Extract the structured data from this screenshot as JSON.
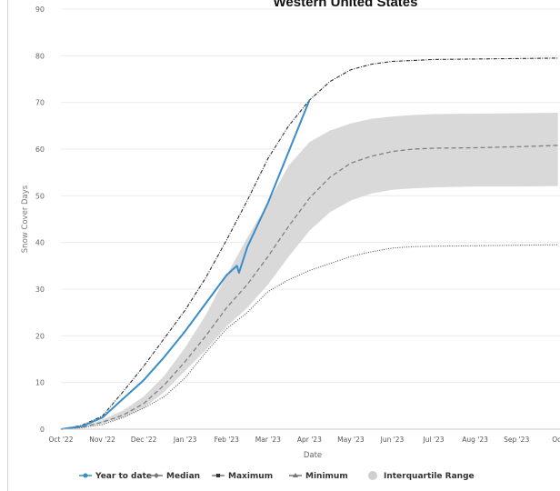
{
  "chart_data": {
    "type": "line",
    "title": "Western United States",
    "xlabel": "Date",
    "ylabel": "Snow Cover Days",
    "ylim": [
      0,
      90
    ],
    "yticks": [
      0,
      10,
      20,
      30,
      40,
      50,
      60,
      70,
      80,
      90
    ],
    "xticks": [
      "Oct '22",
      "Nov '22",
      "Dec '22",
      "Jan '23",
      "Feb '23",
      "Mar '23",
      "Apr '23",
      "May '23",
      "Jun '23",
      "Jul '23",
      "Aug '23",
      "Sep '23",
      "Oct"
    ],
    "x_unit": "months since Oct '22",
    "grid": true,
    "legend_position": "bottom",
    "colors": {
      "year_to_date": "#3a8dc8",
      "median": "#808080",
      "maximum": "#2b2b2b",
      "minimum": "#555555",
      "iqr": "#d9d9d9"
    },
    "series": [
      {
        "name": "Year to date",
        "x": [
          0,
          0.5,
          1.0,
          1.5,
          2.0,
          2.5,
          3.0,
          3.5,
          4.0,
          4.25,
          4.3,
          4.5,
          5.0,
          5.5,
          6.0
        ],
        "values": [
          0,
          0.6,
          2.5,
          6.5,
          10.5,
          15.5,
          21.0,
          27.0,
          33.0,
          35.0,
          33.5,
          39.0,
          48.5,
          59.5,
          70.5
        ]
      },
      {
        "name": "Median",
        "x": [
          0,
          0.5,
          1.0,
          1.5,
          2.0,
          2.5,
          3.0,
          3.5,
          4.0,
          4.5,
          5.0,
          5.5,
          6.0,
          6.5,
          7.0,
          7.5,
          8.0,
          8.5,
          9.0,
          10.0,
          11.0,
          12.0
        ],
        "values": [
          0,
          0.4,
          1.5,
          3.0,
          5.5,
          9.5,
          14.5,
          20.0,
          26.0,
          31.0,
          37.0,
          43.5,
          49.5,
          54.0,
          57.0,
          58.5,
          59.5,
          60.0,
          60.2,
          60.3,
          60.5,
          60.8
        ]
      },
      {
        "name": "Maximum",
        "x": [
          0,
          0.5,
          1.0,
          1.5,
          2.0,
          2.5,
          3.0,
          3.5,
          4.0,
          4.5,
          5.0,
          5.5,
          6.0,
          6.5,
          7.0,
          7.5,
          8.0,
          8.5,
          9.0,
          10.0,
          11.0,
          12.0
        ],
        "values": [
          0,
          0.8,
          2.8,
          8.0,
          13.5,
          19.5,
          25.5,
          32.5,
          40.5,
          49.0,
          58.0,
          65.0,
          70.5,
          74.5,
          77.0,
          78.2,
          78.8,
          79.0,
          79.2,
          79.3,
          79.4,
          79.5
        ]
      },
      {
        "name": "Minimum",
        "x": [
          0,
          0.5,
          1.0,
          1.5,
          2.0,
          2.5,
          3.0,
          3.5,
          4.0,
          4.5,
          5.0,
          5.5,
          6.0,
          6.5,
          7.0,
          7.5,
          8.0,
          8.5,
          9.0,
          10.0,
          11.0,
          12.0
        ],
        "values": [
          0,
          0.3,
          1.0,
          2.5,
          4.5,
          7.0,
          11.0,
          16.5,
          21.5,
          25.0,
          29.5,
          32.0,
          34.0,
          35.5,
          37.0,
          38.0,
          38.8,
          39.1,
          39.2,
          39.3,
          39.4,
          39.5
        ]
      }
    ],
    "band": {
      "name": "Interquartile Range",
      "x": [
        0,
        0.5,
        1.0,
        1.5,
        2.0,
        2.5,
        3.0,
        3.5,
        4.0,
        4.5,
        5.0,
        5.5,
        6.0,
        6.5,
        7.0,
        7.5,
        8.0,
        8.5,
        9.0,
        10.0,
        11.0,
        12.0
      ],
      "low": [
        0,
        0.3,
        1.2,
        2.5,
        4.5,
        8.0,
        12.5,
        17.0,
        22.0,
        26.0,
        31.0,
        37.0,
        42.5,
        46.5,
        49.0,
        50.5,
        51.3,
        51.6,
        51.8,
        52.0,
        52.0,
        52.1
      ],
      "high": [
        0,
        0.5,
        2.0,
        4.0,
        7.0,
        11.5,
        17.5,
        24.5,
        33.0,
        41.0,
        48.5,
        56.5,
        61.5,
        64.0,
        65.5,
        66.5,
        67.0,
        67.3,
        67.5,
        67.6,
        67.7,
        67.8
      ]
    },
    "legend": [
      {
        "name": "Year to date",
        "marker": "line-dot"
      },
      {
        "name": "Median",
        "marker": "diamond-dash"
      },
      {
        "name": "Maximum",
        "marker": "square-dash"
      },
      {
        "name": "Minimum",
        "marker": "triangle-dash"
      },
      {
        "name": "Interquartile Range",
        "marker": "circle-fill"
      }
    ]
  }
}
